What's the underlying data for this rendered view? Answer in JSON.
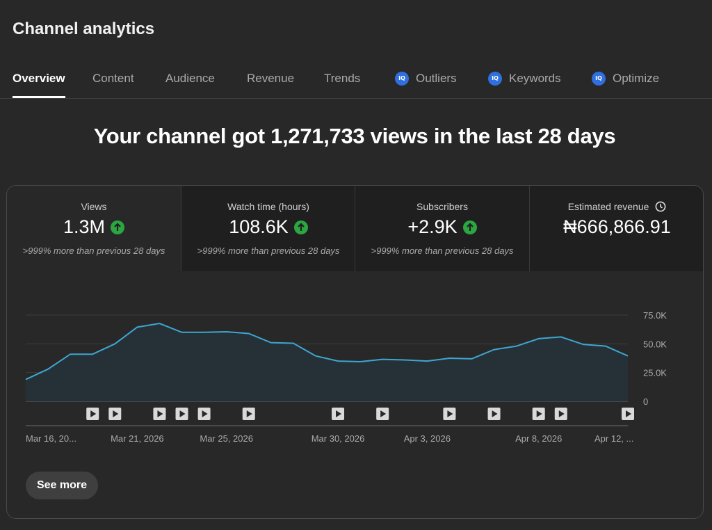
{
  "header": {
    "title": "Channel analytics"
  },
  "tabs": [
    {
      "label": "Overview",
      "active": true,
      "icon": null
    },
    {
      "label": "Content",
      "active": false,
      "icon": null
    },
    {
      "label": "Audience",
      "active": false,
      "icon": null
    },
    {
      "label": "Revenue",
      "active": false,
      "icon": null
    },
    {
      "label": "Trends",
      "active": false,
      "icon": null
    },
    {
      "label": "Outliers",
      "active": false,
      "icon": "IQ"
    },
    {
      "label": "Keywords",
      "active": false,
      "icon": "IQ"
    },
    {
      "label": "Optimize",
      "active": false,
      "icon": "IQ"
    }
  ],
  "headline": "Your channel got 1,271,733 views in the last 28 days",
  "metrics": [
    {
      "label": "Views",
      "value": "1.3M",
      "trend": "up",
      "compare": ">999% more than previous 28 days"
    },
    {
      "label": "Watch time (hours)",
      "value": "108.6K",
      "trend": "up",
      "compare": ">999% more than previous 28 days"
    },
    {
      "label": "Subscribers",
      "value": "+2.9K",
      "trend": "up",
      "compare": ">999% more than previous 28 days"
    },
    {
      "label": "Estimated revenue",
      "value": "₦666,866.91",
      "icon": "clock-icon"
    }
  ],
  "colors": {
    "line": "#3ea6d1",
    "fill": "#263238",
    "up": "#2ba640",
    "iq": "#2f6fe0"
  },
  "chart_data": {
    "type": "area",
    "title": "Views",
    "x": [
      "Mar 16",
      "Mar 17",
      "Mar 18",
      "Mar 19",
      "Mar 20",
      "Mar 21",
      "Mar 22",
      "Mar 23",
      "Mar 24",
      "Mar 25",
      "Mar 26",
      "Mar 27",
      "Mar 28",
      "Mar 29",
      "Mar 30",
      "Mar 31",
      "Apr 1",
      "Apr 2",
      "Apr 3",
      "Apr 4",
      "Apr 5",
      "Apr 6",
      "Apr 7",
      "Apr 8",
      "Apr 9",
      "Apr 10",
      "Apr 11",
      "Apr 12"
    ],
    "values": [
      19000,
      28000,
      41000,
      41000,
      50000,
      64500,
      67700,
      60000,
      60000,
      60500,
      59000,
      51000,
      50500,
      39500,
      35000,
      34500,
      36500,
      36000,
      35000,
      37500,
      37000,
      45000,
      48000,
      54500,
      56000,
      49500,
      48000,
      39500
    ],
    "yticks": [
      {
        "value": 75000,
        "label": "75.0K"
      },
      {
        "value": 50000,
        "label": "50.0K"
      },
      {
        "value": 25000,
        "label": "25.0K"
      },
      {
        "value": 0,
        "label": "0"
      }
    ],
    "ylim": [
      0,
      75000
    ],
    "xtick_labels": [
      {
        "index": 0,
        "label": "Mar 16, 20..."
      },
      {
        "index": 5,
        "label": "Mar 21, 2026"
      },
      {
        "index": 9,
        "label": "Mar 25, 2026"
      },
      {
        "index": 14,
        "label": "Mar 30, 2026"
      },
      {
        "index": 18,
        "label": "Apr 3, 2026"
      },
      {
        "index": 23,
        "label": "Apr 8, 2026"
      },
      {
        "index": 27,
        "label": "Apr 12, ..."
      }
    ],
    "video_markers": [
      3,
      4,
      6,
      7,
      8,
      10,
      14,
      16,
      19,
      21,
      23,
      24,
      27
    ],
    "grid": true
  },
  "footer": {
    "see_more_label": "See more"
  }
}
